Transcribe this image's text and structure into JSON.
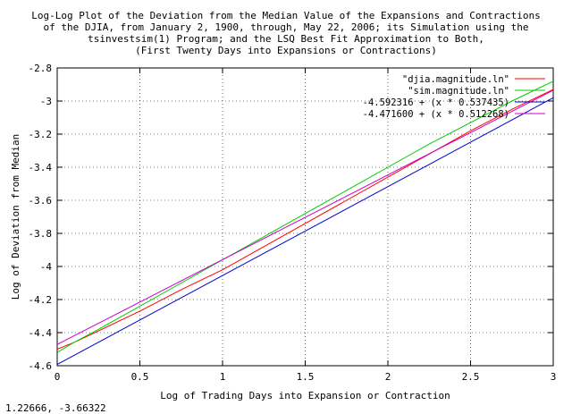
{
  "chart_data": {
    "type": "line",
    "title_lines": [
      "Log-Log Plot of the Deviation from the Median Value of the Expansions and Contractions",
      "of the DJIA, from January 2, 1900, through, May 22, 2006; its Simulation using the",
      "tsinvestsim(1) Program; and the LSQ Best Fit Approximation to Both,",
      "(First Twenty Days into Expansions or Contractions)"
    ],
    "xlabel": "Log of Trading Days into Expansion or Contraction",
    "ylabel": "Log of Deviation from Median",
    "xlim": [
      0,
      3
    ],
    "ylim": [
      -4.6,
      -2.8
    ],
    "x_ticks": [
      0,
      0.5,
      1,
      1.5,
      2,
      2.5,
      3
    ],
    "y_ticks": [
      -2.8,
      -3,
      -3.2,
      -3.4,
      -3.6,
      -3.8,
      -4,
      -4.2,
      -4.4,
      -4.6
    ],
    "x_tick_labels": [
      "0",
      "0.5",
      "1",
      "1.5",
      "2",
      "2.5",
      "3"
    ],
    "y_tick_labels": [
      "-2.8",
      "-3",
      "-3.2",
      "-3.4",
      "-3.6",
      "-3.8",
      "-4",
      "-4.2",
      "-4.4",
      "-4.6"
    ],
    "grid": true,
    "legend_position": "top-right",
    "series": [
      {
        "name": "\"djia.magnitude.ln\"",
        "color": "#ff0000",
        "x": [
          0,
          0.1,
          0.25,
          0.5,
          0.75,
          1,
          1.25,
          1.5,
          1.75,
          2,
          2.25,
          2.5,
          2.75,
          3
        ],
        "y": [
          -4.5,
          -4.46,
          -4.39,
          -4.27,
          -4.14,
          -4.02,
          -3.88,
          -3.74,
          -3.6,
          -3.46,
          -3.32,
          -3.18,
          -3.05,
          -2.93
        ]
      },
      {
        "name": "\"sim.magnitude.ln\"",
        "color": "#00cc00",
        "x": [
          0,
          0.1,
          0.25,
          0.5,
          0.75,
          1,
          1.25,
          1.5,
          1.75,
          2,
          2.25,
          2.5,
          2.75,
          3
        ],
        "y": [
          -4.52,
          -4.46,
          -4.38,
          -4.24,
          -4.1,
          -3.96,
          -3.82,
          -3.68,
          -3.54,
          -3.4,
          -3.26,
          -3.13,
          -3.0,
          -2.88
        ]
      },
      {
        "name": "-4.592316 + (x * 0.537435)",
        "color": "#0000cc",
        "formula": true,
        "intercept": -4.592316,
        "slope": 0.537435
      },
      {
        "name": "-4.471600 + (x * 0.512268)",
        "color": "#cc00cc",
        "formula": true,
        "intercept": -4.4716,
        "slope": 0.512268
      }
    ]
  },
  "coord_readout": "1.22666, -3.66322"
}
